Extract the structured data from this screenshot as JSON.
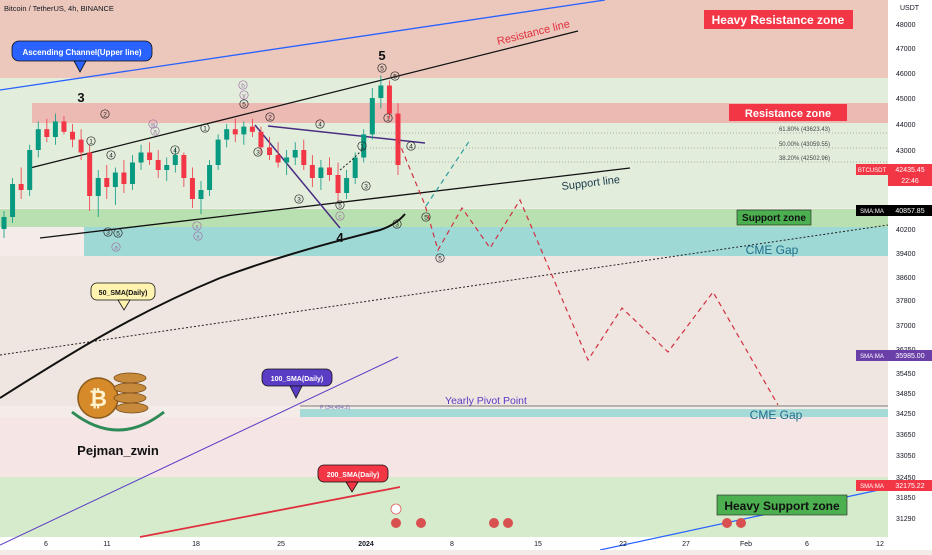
{
  "header": {
    "symbol": "Bitcoin / TetherUS, 4h, BINANCE"
  },
  "author": {
    "name": "Pejman_zwin"
  },
  "chart_data": {
    "type": "candlestick",
    "currency_label": "USDT",
    "y_ticks": [
      48000,
      47000,
      46000,
      45000,
      44000,
      43000,
      42000,
      40200,
      39400,
      38600,
      37800,
      37000,
      36250,
      35450,
      34850,
      34250,
      33650,
      33050,
      32450,
      31850,
      31290
    ],
    "x_ticks": [
      "6",
      "11",
      "18",
      "25",
      "2024",
      "8",
      "15",
      "22",
      "27",
      "Feb",
      "6",
      "12"
    ],
    "price_tags": [
      {
        "label": "SMA:MA",
        "value": "40857.85",
        "color": "#000000"
      },
      {
        "label": "BTCUSDT",
        "value": "42435.45",
        "sub": "22:46",
        "color": "#f23645"
      },
      {
        "label": "SMA:MA",
        "value": "35985.00",
        "color": "#6a3fa8"
      },
      {
        "label": "SMA:MA",
        "value": "32175.22",
        "color": "#f23645"
      }
    ],
    "zones": {
      "heavy_resistance": "Heavy Resistance zone",
      "resistance": "Resistance zone",
      "support": "Support zone",
      "heavy_support": "Heavy Support zone",
      "cme_gap_1": "CME Gap",
      "cme_gap_2": "CME Gap"
    },
    "lines": {
      "ascending_channel": "Ascending Channel(Upper line)",
      "resistance_line": "Resistance line",
      "support_line": "Support line",
      "yearly_pivot": "Yearly Pivot Point",
      "pivot_tag": "P (34,494.2)"
    },
    "fib_levels": [
      {
        "ratio": "61.80%",
        "price": "43623.43"
      },
      {
        "ratio": "50.00%",
        "price": "43059.55"
      },
      {
        "ratio": "38.20%",
        "price": "42502.96"
      }
    ],
    "sma_labels": [
      "50_SMA(Daily)",
      "100_SMA(Daily)",
      "200_SMA(Daily)"
    ],
    "wave_labels": {
      "main": [
        "3",
        "5",
        "4"
      ],
      "minor": [
        "1",
        "2",
        "3",
        "4",
        "5",
        "a",
        "b",
        "c",
        "w",
        "x",
        "y"
      ]
    },
    "candles": [
      [
        40200,
        40800,
        39900,
        40600
      ],
      [
        40600,
        41900,
        40400,
        41700
      ],
      [
        41700,
        42300,
        41200,
        41500
      ],
      [
        41500,
        43200,
        41300,
        43000
      ],
      [
        43000,
        44100,
        42700,
        43800
      ],
      [
        43800,
        44200,
        43300,
        43500
      ],
      [
        43500,
        44400,
        43200,
        44100
      ],
      [
        44100,
        44300,
        43600,
        43700
      ],
      [
        43700,
        44000,
        43100,
        43400
      ],
      [
        43400,
        43800,
        42600,
        42900
      ],
      [
        42900,
        43200,
        40800,
        41300
      ],
      [
        41300,
        42200,
        40600,
        41900
      ],
      [
        41900,
        42400,
        41200,
        41600
      ],
      [
        41600,
        42300,
        41000,
        42100
      ],
      [
        42100,
        42600,
        41400,
        41700
      ],
      [
        41700,
        42800,
        41500,
        42500
      ],
      [
        42500,
        43200,
        42200,
        42900
      ],
      [
        42900,
        43300,
        42400,
        42600
      ],
      [
        42600,
        43000,
        41900,
        42200
      ],
      [
        42200,
        42700,
        41800,
        42400
      ],
      [
        42400,
        43100,
        42100,
        42800
      ],
      [
        42800,
        42900,
        41600,
        41900
      ],
      [
        41900,
        42300,
        40900,
        41200
      ],
      [
        41200,
        41800,
        40700,
        41500
      ],
      [
        41500,
        42600,
        41300,
        42400
      ],
      [
        42400,
        43600,
        42200,
        43400
      ],
      [
        43400,
        44000,
        43100,
        43800
      ],
      [
        43800,
        44200,
        43300,
        43600
      ],
      [
        43600,
        44100,
        43200,
        43900
      ],
      [
        43900,
        44200,
        43500,
        43700
      ],
      [
        43700,
        43900,
        42800,
        43100
      ],
      [
        43100,
        43500,
        42600,
        42800
      ],
      [
        42800,
        43300,
        42300,
        42500
      ],
      [
        42500,
        43000,
        42000,
        42700
      ],
      [
        42700,
        43300,
        42400,
        43000
      ],
      [
        43000,
        43400,
        42200,
        42400
      ],
      [
        42400,
        42800,
        41600,
        41900
      ],
      [
        41900,
        42600,
        41500,
        42300
      ],
      [
        42300,
        42700,
        41800,
        42000
      ],
      [
        42000,
        42500,
        41100,
        41400
      ],
      [
        41400,
        42200,
        41200,
        41900
      ],
      [
        41900,
        42900,
        41700,
        42700
      ],
      [
        42700,
        43800,
        42500,
        43600
      ],
      [
        43600,
        45400,
        43400,
        45000
      ],
      [
        45000,
        45900,
        44600,
        45500
      ],
      [
        45500,
        45700,
        44200,
        44400
      ],
      [
        44400,
        44800,
        42000,
        42400
      ]
    ]
  }
}
